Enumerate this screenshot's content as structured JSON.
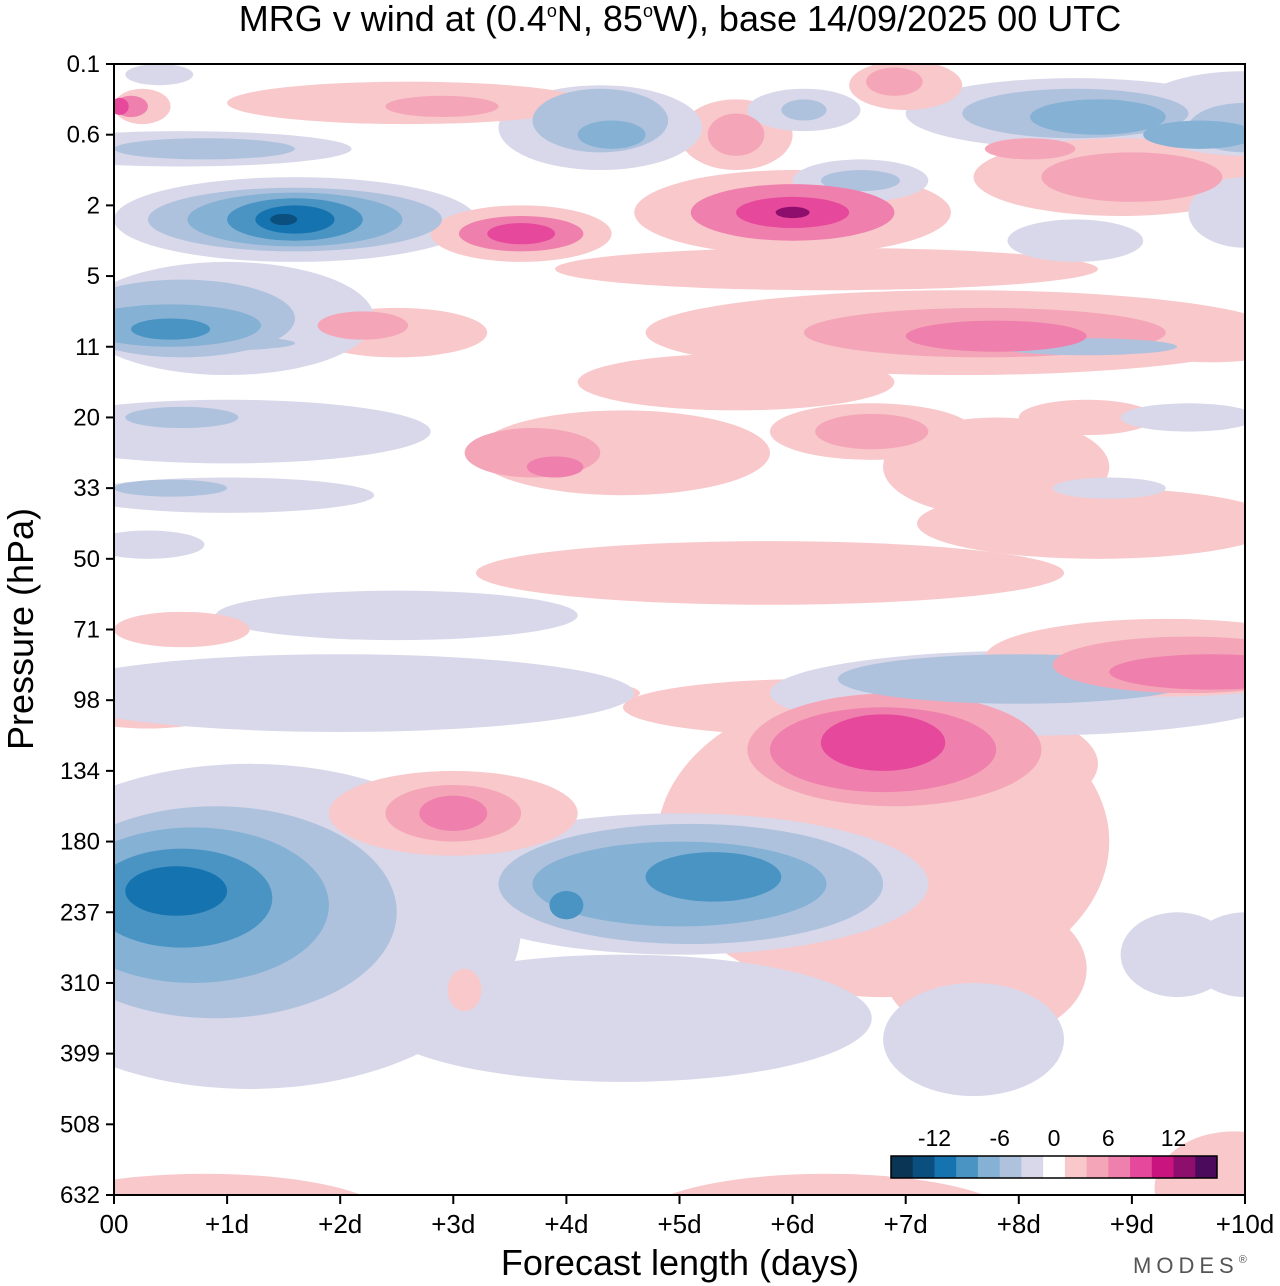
{
  "chart_data": {
    "type": "heatmap",
    "title": "MRG v wind at (0.4°N, 85°W),  base 14/09/2025  00 UTC",
    "title_parts": {
      "pre": "MRG v wind at (0.4",
      "deg1": "o",
      "mid": "N, 85",
      "deg2": "o",
      "post": "W),  base 14/09/2025  00 UTC"
    },
    "xlabel": "Forecast length (days)",
    "ylabel": "Pressure (hPa)",
    "x_ticks": [
      "00",
      "+1d",
      "+2d",
      "+3d",
      "+4d",
      "+5d",
      "+6d",
      "+7d",
      "+8d",
      "+9d",
      "+10d"
    ],
    "xlim": [
      0,
      10
    ],
    "y_ticks": [
      "0.1",
      "0.6",
      "2",
      "5",
      "11",
      "20",
      "33",
      "50",
      "71",
      "98",
      "134",
      "180",
      "237",
      "310",
      "399",
      "508",
      "632"
    ],
    "y_scale": "categorical pressure levels, top = 0.1 hPa, bottom = 632 hPa",
    "colorbar": {
      "ticks": [
        "-12",
        "-6",
        "0",
        "6",
        "12"
      ],
      "tick_values": [
        -12,
        -6,
        0,
        6,
        12
      ],
      "levels": [
        -14,
        -12,
        -10,
        -8,
        -6,
        -4,
        -2,
        2,
        4,
        6,
        8,
        10,
        12,
        14
      ],
      "colors": [
        "#0a3554",
        "#0b4f7e",
        "#1574b0",
        "#4a94c4",
        "#84b1d4",
        "#afc2dd",
        "#d8d8ea",
        "#ffffff",
        "#f8c8cb",
        "#f4a6b8",
        "#ef7fac",
        "#e6489c",
        "#c9147f",
        "#8e0e6e",
        "#4c0a5c"
      ],
      "placement": "bottom-right"
    },
    "features": [
      {
        "name": "stratosphere-blue-1",
        "day": 1.6,
        "level": 2.2,
        "value": -14
      },
      {
        "name": "stratosphere-blue-2",
        "day": 4.3,
        "level": 0.9,
        "value": -8
      },
      {
        "name": "stratosphere-blue-3",
        "day": 8.5,
        "level": 0.7,
        "value": -10
      },
      {
        "name": "stratosphere-pink-1",
        "day": 3.6,
        "level": 2.4,
        "value": 12
      },
      {
        "name": "stratosphere-pink-2",
        "day": 6.0,
        "level": 2.1,
        "value": 14
      },
      {
        "name": "stratosphere-pink-3",
        "day": 7.0,
        "level": 3.8,
        "value": 10
      },
      {
        "name": "mid-pink-band",
        "day": 9.3,
        "level": 8.4,
        "value": 10
      },
      {
        "name": "upper-trop-pink",
        "day": 7.0,
        "level": 9.6,
        "value": 12
      },
      {
        "name": "upper-trop-pink-small",
        "day": 3.0,
        "level": 10.6,
        "value": 8
      },
      {
        "name": "upper-trop-blue-1",
        "day": 0.6,
        "level": 11.7,
        "value": -12
      },
      {
        "name": "upper-trop-blue-2",
        "day": 5.2,
        "level": 11.5,
        "value": -10
      }
    ]
  },
  "branding": {
    "text": "MODES",
    "mark": "®"
  }
}
